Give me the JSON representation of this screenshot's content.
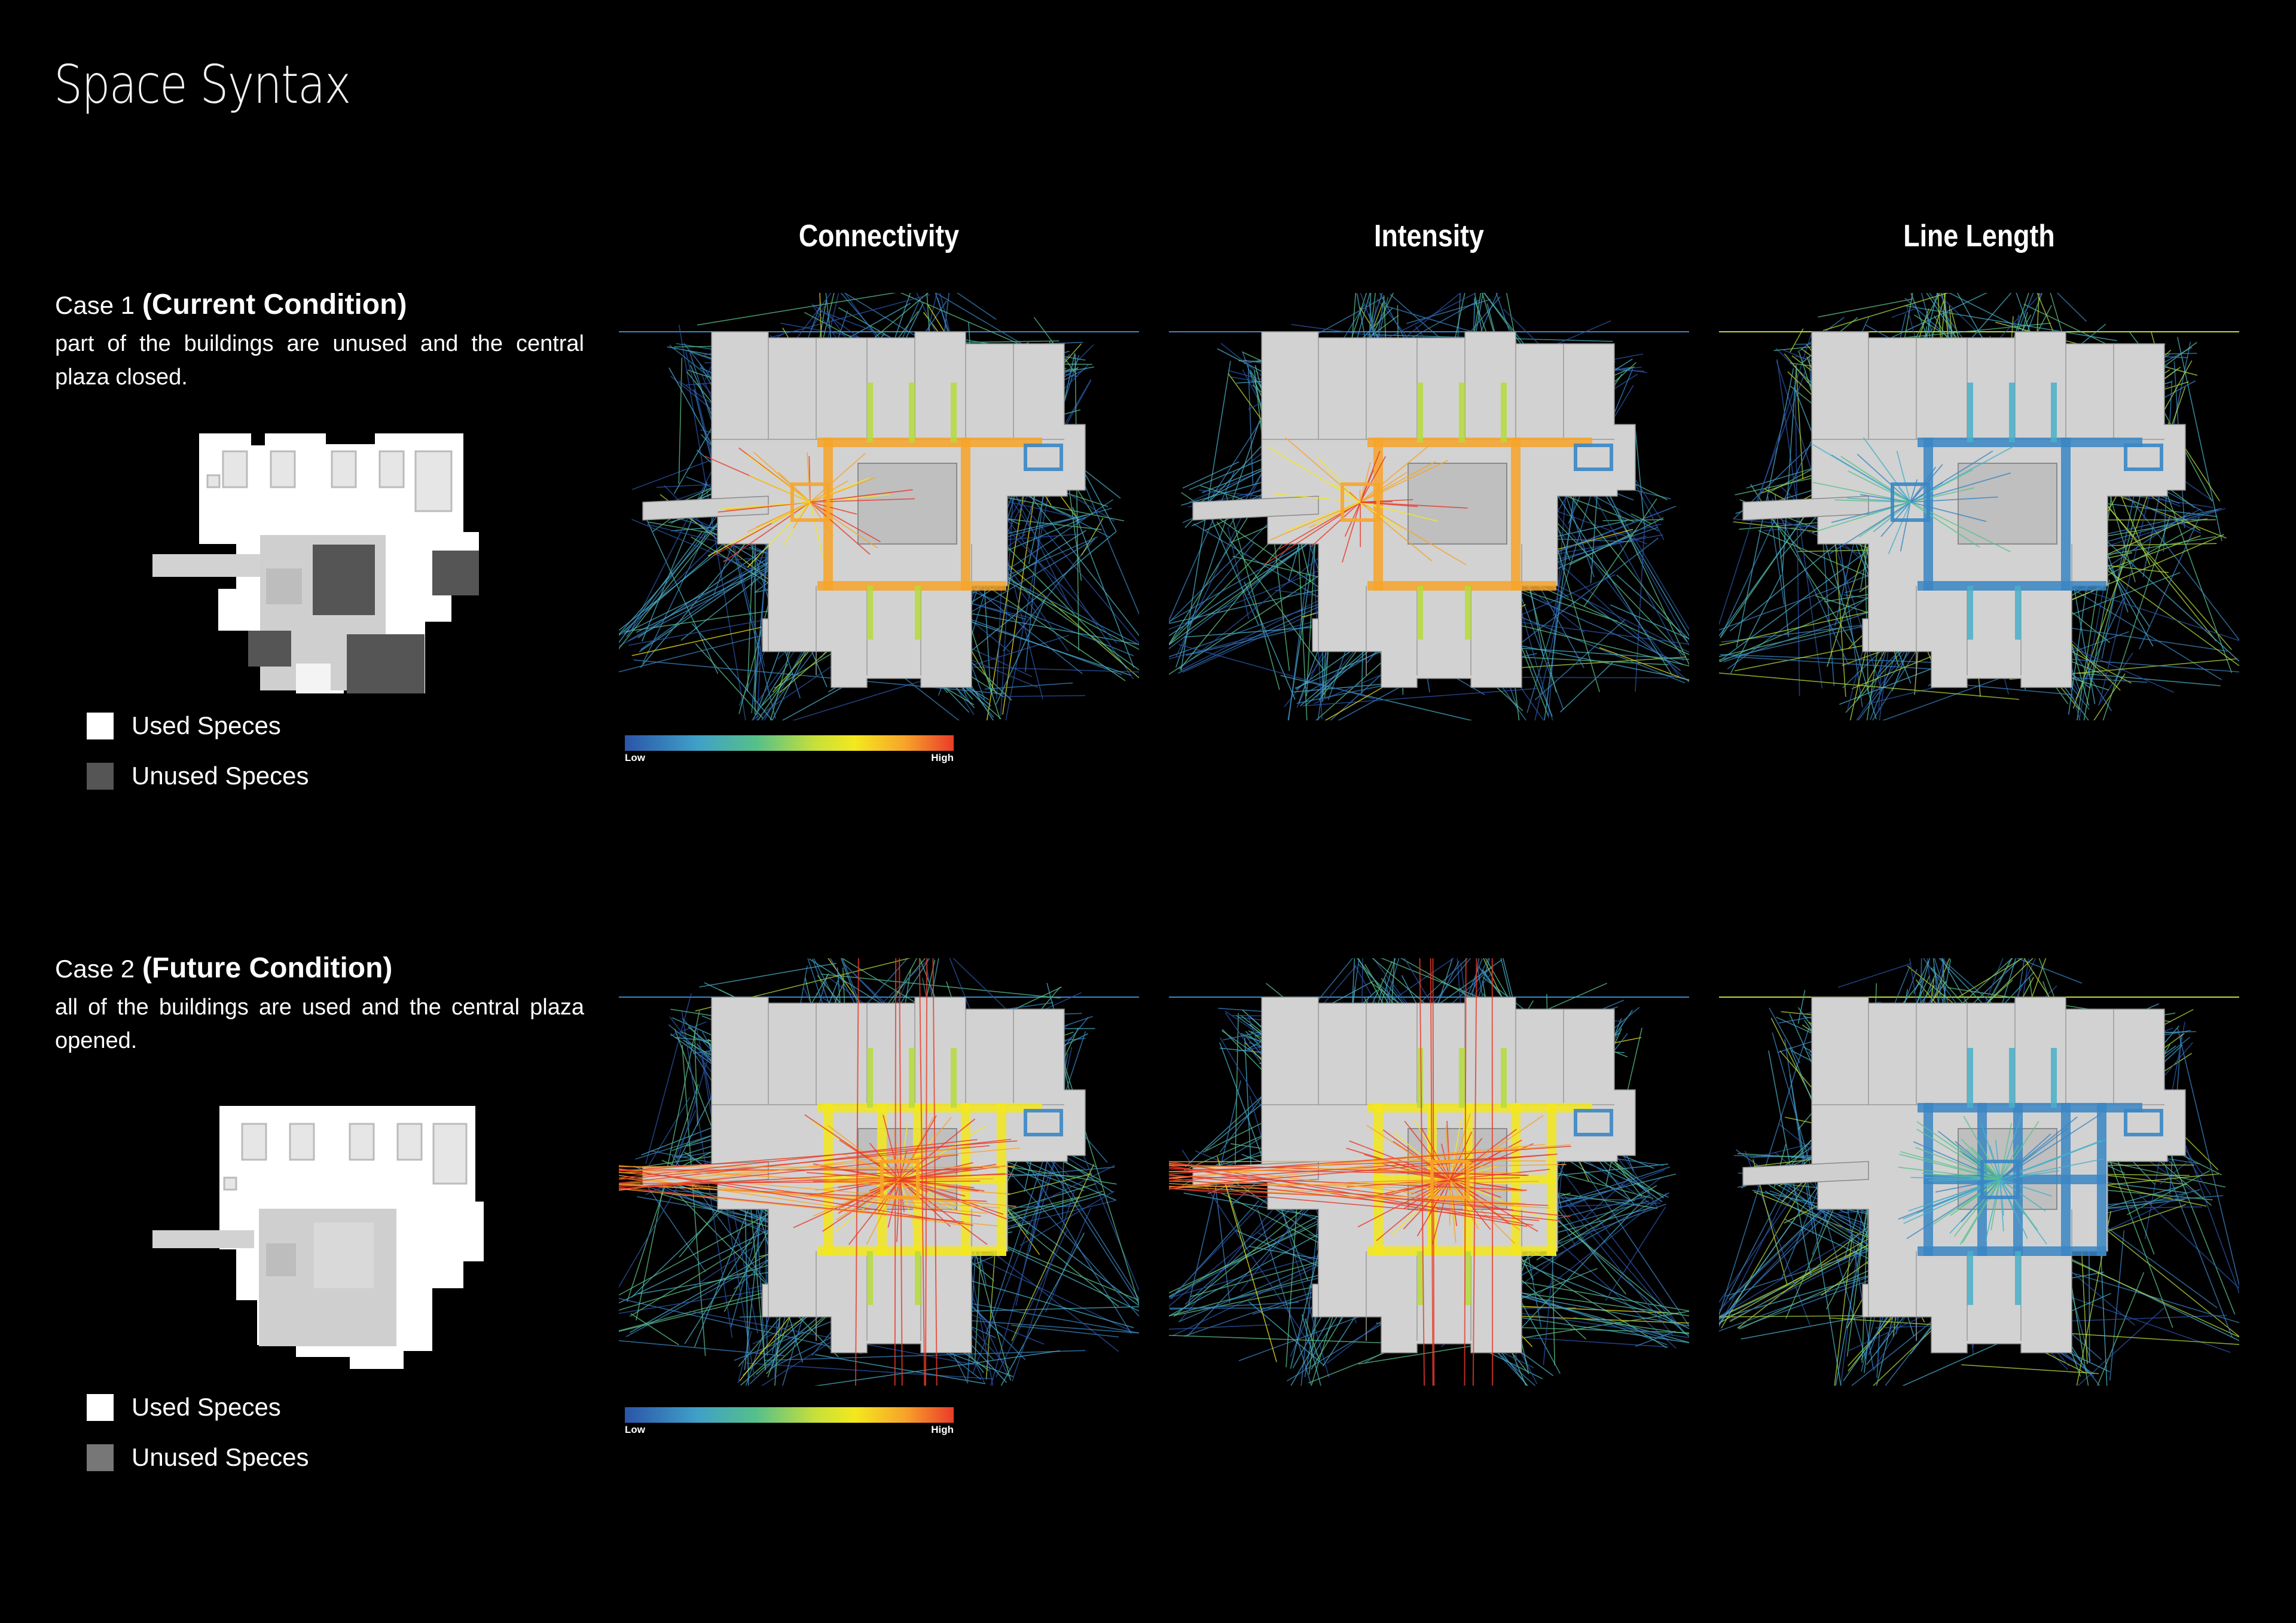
{
  "page": {
    "title": "Space Syntax"
  },
  "columns": [
    {
      "label": "Connectivity"
    },
    {
      "label": "Intensity"
    },
    {
      "label": "Line Length"
    }
  ],
  "cases": [
    {
      "case_num": "Case 1",
      "case_condition": "(Current Condition)",
      "description": "part of the buildings are unused and the central plaza closed.",
      "legend": [
        {
          "label": "Used Speces",
          "color": "#ffffff"
        },
        {
          "label": "Unused Speces",
          "color": "#555555"
        }
      ]
    },
    {
      "case_num": "Case 2",
      "case_condition": "(Future Condition)",
      "description": "all of the buildings are used and the central plaza opened.",
      "legend": [
        {
          "label": "Used Speces",
          "color": "#ffffff"
        },
        {
          "label": "Unused Speces",
          "color": "#777777"
        }
      ]
    }
  ],
  "scale": {
    "low_label": "Low",
    "high_label": "High"
  },
  "colors": {
    "background": "#000000",
    "building": "#d2d2d2",
    "low": "#2b55a8",
    "mid": "#f4e81e",
    "high": "#ea3b2a"
  }
}
